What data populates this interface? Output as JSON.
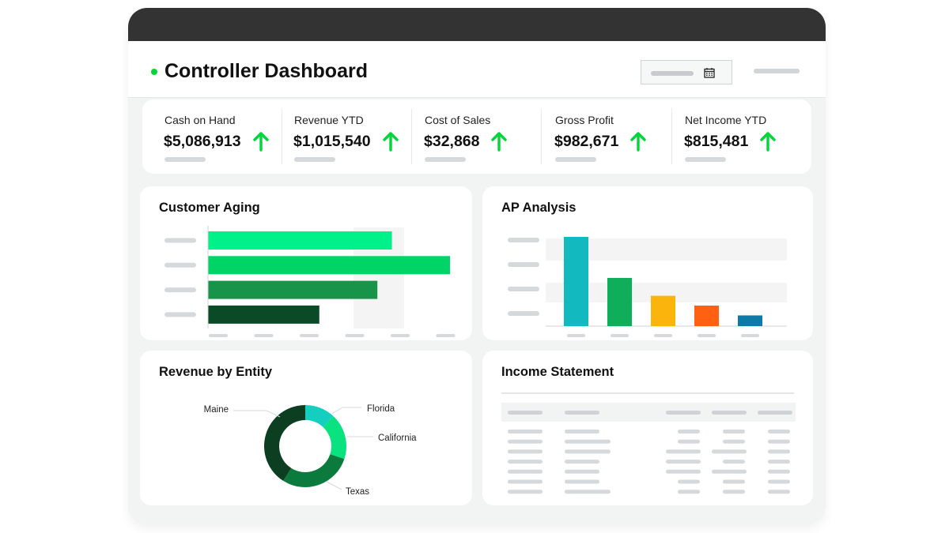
{
  "dashboard": {
    "title": "Controller Dashboard"
  },
  "kpis": [
    {
      "label": "Cash on Hand",
      "value": "$5,086,913",
      "trend": "up"
    },
    {
      "label": "Revenue YTD",
      "value": "$1,015,540",
      "trend": "up"
    },
    {
      "label": "Cost of Sales",
      "value": "$32,868",
      "trend": "up"
    },
    {
      "label": "Gross Profit",
      "value": "$982,671",
      "trend": "up"
    },
    {
      "label": "Net Income YTD",
      "value": "$815,481",
      "trend": "up"
    }
  ],
  "colors": {
    "accent_green": "#00d639",
    "aging_bars": [
      "#00f08a",
      "#00d466",
      "#17944a",
      "#0b4a26"
    ],
    "ap_bars": [
      "#12b9be",
      "#0fae5b",
      "#fbb40c",
      "#ff6012",
      "#0d7aa8"
    ],
    "entity_slices": [
      "#14cfc0",
      "#09e27e",
      "#0a7b3c",
      "#0c3f22"
    ]
  },
  "panels": {
    "customer_aging": {
      "title": "Customer Aging"
    },
    "ap_analysis": {
      "title": "AP Analysis"
    },
    "revenue_by_entity": {
      "title": "Revenue by Entity"
    },
    "income_statement": {
      "title": "Income Statement"
    }
  },
  "chart_data": [
    {
      "type": "bar",
      "orientation": "horizontal",
      "title": "Customer Aging",
      "categories": [
        "",
        "",
        "",
        ""
      ],
      "values": [
        76,
        100,
        70,
        46
      ],
      "xlim": [
        0,
        100
      ]
    },
    {
      "type": "bar",
      "title": "AP Analysis",
      "categories": [
        "",
        "",
        "",
        "",
        ""
      ],
      "values": [
        100,
        54,
        34,
        23,
        12
      ],
      "ylim": [
        0,
        100
      ]
    },
    {
      "type": "pie",
      "title": "Revenue by Entity",
      "labels": [
        "Florida",
        "California",
        "Texas",
        "Maine"
      ],
      "values": [
        12,
        18,
        29,
        41
      ]
    }
  ]
}
